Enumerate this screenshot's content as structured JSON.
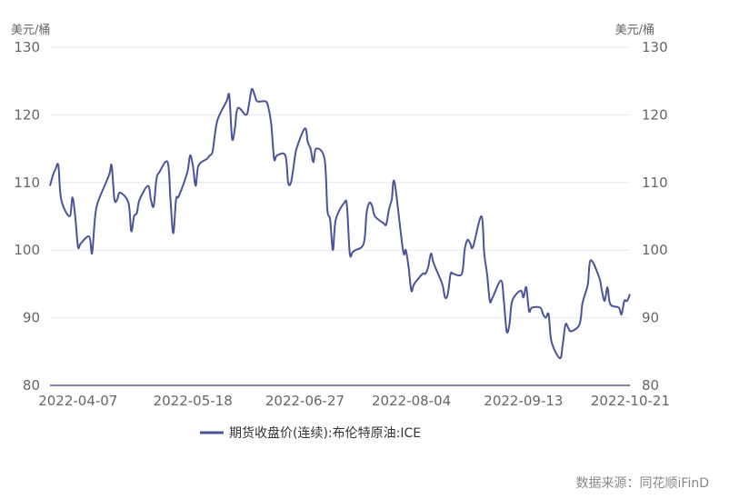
{
  "chart_data": {
    "type": "line",
    "ylabel_left": "美元/桶",
    "ylabel_right": "美元/桶",
    "ylim": [
      80,
      130
    ],
    "yticks": [
      80,
      90,
      100,
      110,
      120,
      130
    ],
    "xlim": [
      "2022-03-28",
      "2022-10-21"
    ],
    "xticks": [
      "2022-04-07",
      "2022-05-18",
      "2022-06-27",
      "2022-08-04",
      "2022-09-13",
      "2022-10-21"
    ],
    "grid": true,
    "legend_position": "bottom",
    "source": "数据来源：同花顺iFinD",
    "series": [
      {
        "name": "期货收盘价(连续):布伦特原油:ICE",
        "color": "#4a5499",
        "points": [
          [
            "2022-03-28",
            109.5
          ],
          [
            "2022-03-29",
            111.0
          ],
          [
            "2022-03-30",
            112.0
          ],
          [
            "2022-03-31",
            112.5
          ],
          [
            "2022-04-01",
            107.5
          ],
          [
            "2022-04-04",
            105.0
          ],
          [
            "2022-04-05",
            107.8
          ],
          [
            "2022-04-06",
            105.0
          ],
          [
            "2022-04-07",
            100.5
          ],
          [
            "2022-04-08",
            101.0
          ],
          [
            "2022-04-11",
            102.0
          ],
          [
            "2022-04-12",
            99.5
          ],
          [
            "2022-04-13",
            104.5
          ],
          [
            "2022-04-14",
            107.0
          ],
          [
            "2022-04-18",
            111.0
          ],
          [
            "2022-04-19",
            112.5
          ],
          [
            "2022-04-20",
            107.5
          ],
          [
            "2022-04-21",
            107.5
          ],
          [
            "2022-04-22",
            108.5
          ],
          [
            "2022-04-25",
            107.0
          ],
          [
            "2022-04-26",
            102.8
          ],
          [
            "2022-04-27",
            105.0
          ],
          [
            "2022-04-28",
            105.5
          ],
          [
            "2022-04-29",
            107.5
          ],
          [
            "2022-05-02",
            109.5
          ],
          [
            "2022-05-03",
            107.5
          ],
          [
            "2022-05-04",
            106.5
          ],
          [
            "2022-05-05",
            110.5
          ],
          [
            "2022-05-06",
            111.5
          ],
          [
            "2022-05-09",
            113.0
          ],
          [
            "2022-05-10",
            107.5
          ],
          [
            "2022-05-11",
            102.5
          ],
          [
            "2022-05-12",
            107.5
          ],
          [
            "2022-05-13",
            108.0
          ],
          [
            "2022-05-16",
            111.5
          ],
          [
            "2022-05-17",
            114.0
          ],
          [
            "2022-05-18",
            112.5
          ],
          [
            "2022-05-19",
            109.5
          ],
          [
            "2022-05-20",
            112.5
          ],
          [
            "2022-05-23",
            113.5
          ],
          [
            "2022-05-24",
            114.0
          ],
          [
            "2022-05-25",
            114.5
          ],
          [
            "2022-05-26",
            117.5
          ],
          [
            "2022-05-27",
            119.5
          ],
          [
            "2022-05-30",
            122.0
          ],
          [
            "2022-05-31",
            122.8
          ],
          [
            "2022-06-01",
            116.5
          ],
          [
            "2022-06-02",
            118.0
          ],
          [
            "2022-06-03",
            121.0
          ],
          [
            "2022-06-06",
            120.0
          ],
          [
            "2022-06-07",
            121.5
          ],
          [
            "2022-06-08",
            123.8
          ],
          [
            "2022-06-09",
            123.0
          ],
          [
            "2022-06-10",
            122.0
          ],
          [
            "2022-06-13",
            122.0
          ],
          [
            "2022-06-14",
            121.0
          ],
          [
            "2022-06-15",
            118.5
          ],
          [
            "2022-06-16",
            113.5
          ],
          [
            "2022-06-17",
            114.0
          ],
          [
            "2022-06-20",
            114.0
          ],
          [
            "2022-06-21",
            110.0
          ],
          [
            "2022-06-22",
            110.0
          ],
          [
            "2022-06-23",
            112.5
          ],
          [
            "2022-06-24",
            115.0
          ],
          [
            "2022-06-27",
            118.0
          ],
          [
            "2022-06-28",
            116.0
          ],
          [
            "2022-06-29",
            115.0
          ],
          [
            "2022-06-30",
            113.0
          ],
          [
            "2022-07-01",
            115.0
          ],
          [
            "2022-07-04",
            113.5
          ],
          [
            "2022-07-05",
            106.0
          ],
          [
            "2022-07-06",
            104.5
          ],
          [
            "2022-07-07",
            100.0
          ],
          [
            "2022-07-08",
            104.5
          ],
          [
            "2022-07-11",
            107.0
          ],
          [
            "2022-07-12",
            106.5
          ],
          [
            "2022-07-13",
            99.5
          ],
          [
            "2022-07-14",
            99.7
          ],
          [
            "2022-07-15",
            100.0
          ],
          [
            "2022-07-18",
            101.0
          ],
          [
            "2022-07-19",
            105.5
          ],
          [
            "2022-07-20",
            107.0
          ],
          [
            "2022-07-21",
            106.5
          ],
          [
            "2022-07-22",
            105.0
          ],
          [
            "2022-07-25",
            104.0
          ],
          [
            "2022-07-26",
            103.8
          ],
          [
            "2022-07-27",
            106.0
          ],
          [
            "2022-07-28",
            107.5
          ],
          [
            "2022-07-29",
            110.0
          ],
          [
            "2022-08-01",
            100.0
          ],
          [
            "2022-08-02",
            100.0
          ],
          [
            "2022-08-03",
            97.5
          ],
          [
            "2022-08-04",
            94.0
          ],
          [
            "2022-08-05",
            95.0
          ],
          [
            "2022-08-08",
            96.5
          ],
          [
            "2022-08-09",
            96.5
          ],
          [
            "2022-08-10",
            97.5
          ],
          [
            "2022-08-11",
            99.5
          ],
          [
            "2022-08-12",
            98.0
          ],
          [
            "2022-08-15",
            95.0
          ],
          [
            "2022-08-16",
            93.0
          ],
          [
            "2022-08-17",
            93.5
          ],
          [
            "2022-08-18",
            96.5
          ],
          [
            "2022-08-19",
            96.5
          ],
          [
            "2022-08-22",
            96.5
          ],
          [
            "2022-08-23",
            100.0
          ],
          [
            "2022-08-24",
            101.5
          ],
          [
            "2022-08-25",
            101.0
          ],
          [
            "2022-08-26",
            100.5
          ],
          [
            "2022-08-29",
            105.0
          ],
          [
            "2022-08-30",
            99.5
          ],
          [
            "2022-08-31",
            96.5
          ],
          [
            "2022-09-01",
            92.5
          ],
          [
            "2022-09-02",
            93.0
          ],
          [
            "2022-09-05",
            95.5
          ],
          [
            "2022-09-06",
            92.5
          ],
          [
            "2022-09-07",
            88.0
          ],
          [
            "2022-09-08",
            89.0
          ],
          [
            "2022-09-09",
            92.5
          ],
          [
            "2022-09-12",
            94.0
          ],
          [
            "2022-09-13",
            93.0
          ],
          [
            "2022-09-14",
            94.5
          ],
          [
            "2022-09-15",
            91.0
          ],
          [
            "2022-09-16",
            91.5
          ],
          [
            "2022-09-19",
            91.5
          ],
          [
            "2022-09-20",
            90.5
          ],
          [
            "2022-09-21",
            90.0
          ],
          [
            "2022-09-22",
            90.5
          ],
          [
            "2022-09-23",
            86.5
          ],
          [
            "2022-09-26",
            84.0
          ],
          [
            "2022-09-27",
            86.0
          ],
          [
            "2022-09-28",
            89.0
          ],
          [
            "2022-09-29",
            88.5
          ],
          [
            "2022-09-30",
            88.0
          ],
          [
            "2022-10-03",
            89.0
          ],
          [
            "2022-10-04",
            92.0
          ],
          [
            "2022-10-05",
            93.5
          ],
          [
            "2022-10-06",
            95.0
          ],
          [
            "2022-10-07",
            98.5
          ],
          [
            "2022-10-10",
            96.0
          ],
          [
            "2022-10-11",
            94.0
          ],
          [
            "2022-10-12",
            92.5
          ],
          [
            "2022-10-13",
            94.5
          ],
          [
            "2022-10-14",
            92.0
          ],
          [
            "2022-10-17",
            91.5
          ],
          [
            "2022-10-18",
            90.5
          ],
          [
            "2022-10-19",
            92.5
          ],
          [
            "2022-10-20",
            92.5
          ],
          [
            "2022-10-21",
            93.5
          ]
        ]
      }
    ]
  }
}
